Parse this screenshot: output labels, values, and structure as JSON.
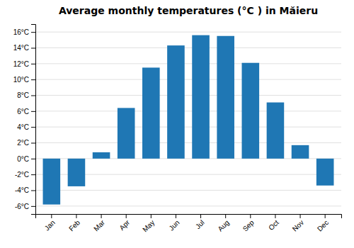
{
  "chart_data": {
    "type": "bar",
    "title": "Average monthly temperatures (°C ) in Măieru",
    "categories": [
      "Jan",
      "Feb",
      "Mar",
      "Apr",
      "May",
      "Jun",
      "Jul",
      "Aug",
      "Sep",
      "Oct",
      "Nov",
      "Dec"
    ],
    "values": [
      -5.8,
      -3.5,
      0.8,
      6.4,
      11.5,
      14.3,
      15.6,
      15.5,
      12.1,
      7.1,
      1.7,
      -3.4
    ],
    "ylim": [
      -7,
      17
    ],
    "yticks": [
      {
        "value": -6,
        "label": "-6°C"
      },
      {
        "value": -4,
        "label": "-4°C"
      },
      {
        "value": -2,
        "label": "-2°C"
      },
      {
        "value": 0,
        "label": "0°C"
      },
      {
        "value": 2,
        "label": "2°C"
      },
      {
        "value": 4,
        "label": "4°C"
      },
      {
        "value": 6,
        "label": "6°C"
      },
      {
        "value": 8,
        "label": "8°C"
      },
      {
        "value": 10,
        "label": "10°C"
      },
      {
        "value": 12,
        "label": "12°C"
      },
      {
        "value": 14,
        "label": "14°C"
      },
      {
        "value": 16,
        "label": "16°C"
      }
    ],
    "grid": true
  }
}
